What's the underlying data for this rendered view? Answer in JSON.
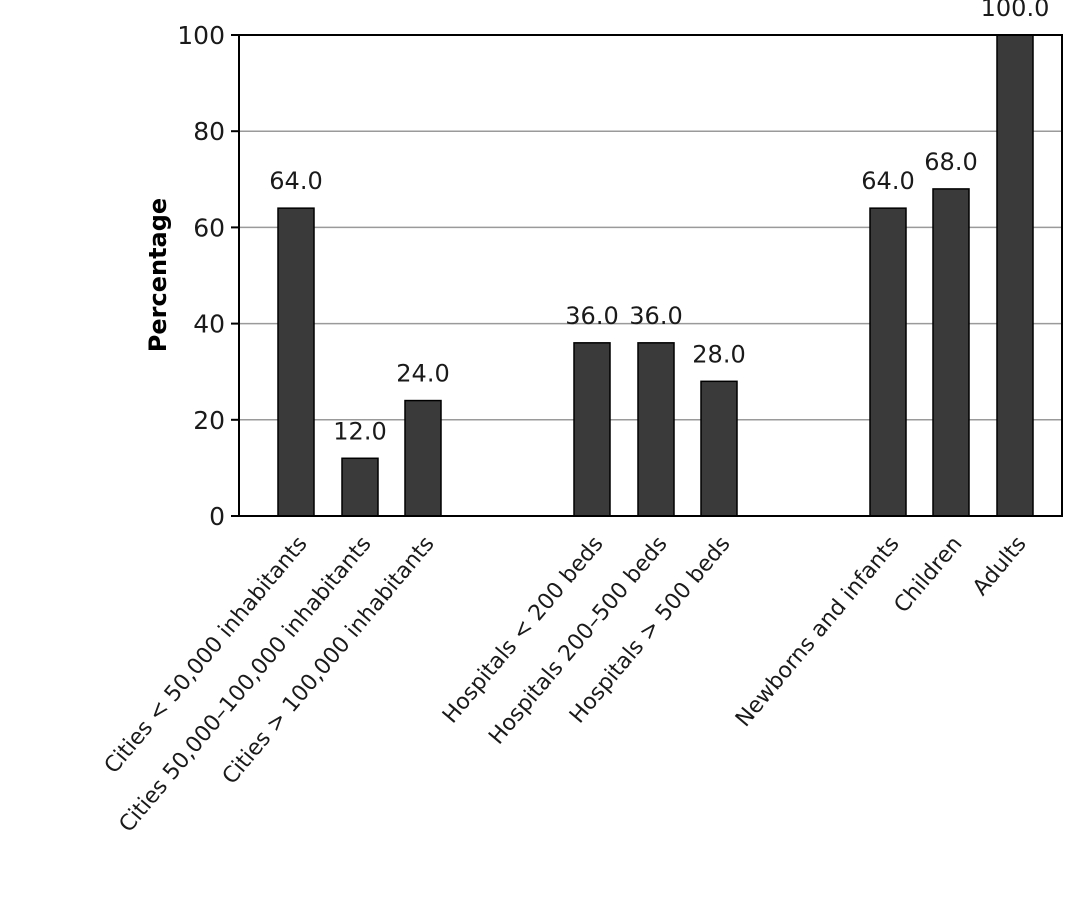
{
  "chart_data": {
    "type": "bar",
    "ylabel": "Percentage",
    "ylim": [
      0,
      100
    ],
    "yticks": [
      0,
      20,
      40,
      60,
      80,
      100
    ],
    "grid": true,
    "bar_color": "#3a3a3a",
    "categories": [
      "Cities < 50,000 inhabitants",
      "Cities 50,000–100,000 inhabitants",
      "Cities > 100,000 inhabitants",
      "Hospitals < 200 beds",
      "Hospitals 200–500 beds",
      "Hospitals > 500 beds",
      "Newborns and infants",
      "Children",
      "Adults"
    ],
    "values": [
      64.0,
      12.0,
      24.0,
      36.0,
      36.0,
      28.0,
      64.0,
      68.0,
      100.0
    ],
    "data_labels": [
      "64.0",
      "12.0",
      "24.0",
      "36.0",
      "36.0",
      "28.0",
      "64.0",
      "68.0",
      "100.0"
    ]
  }
}
